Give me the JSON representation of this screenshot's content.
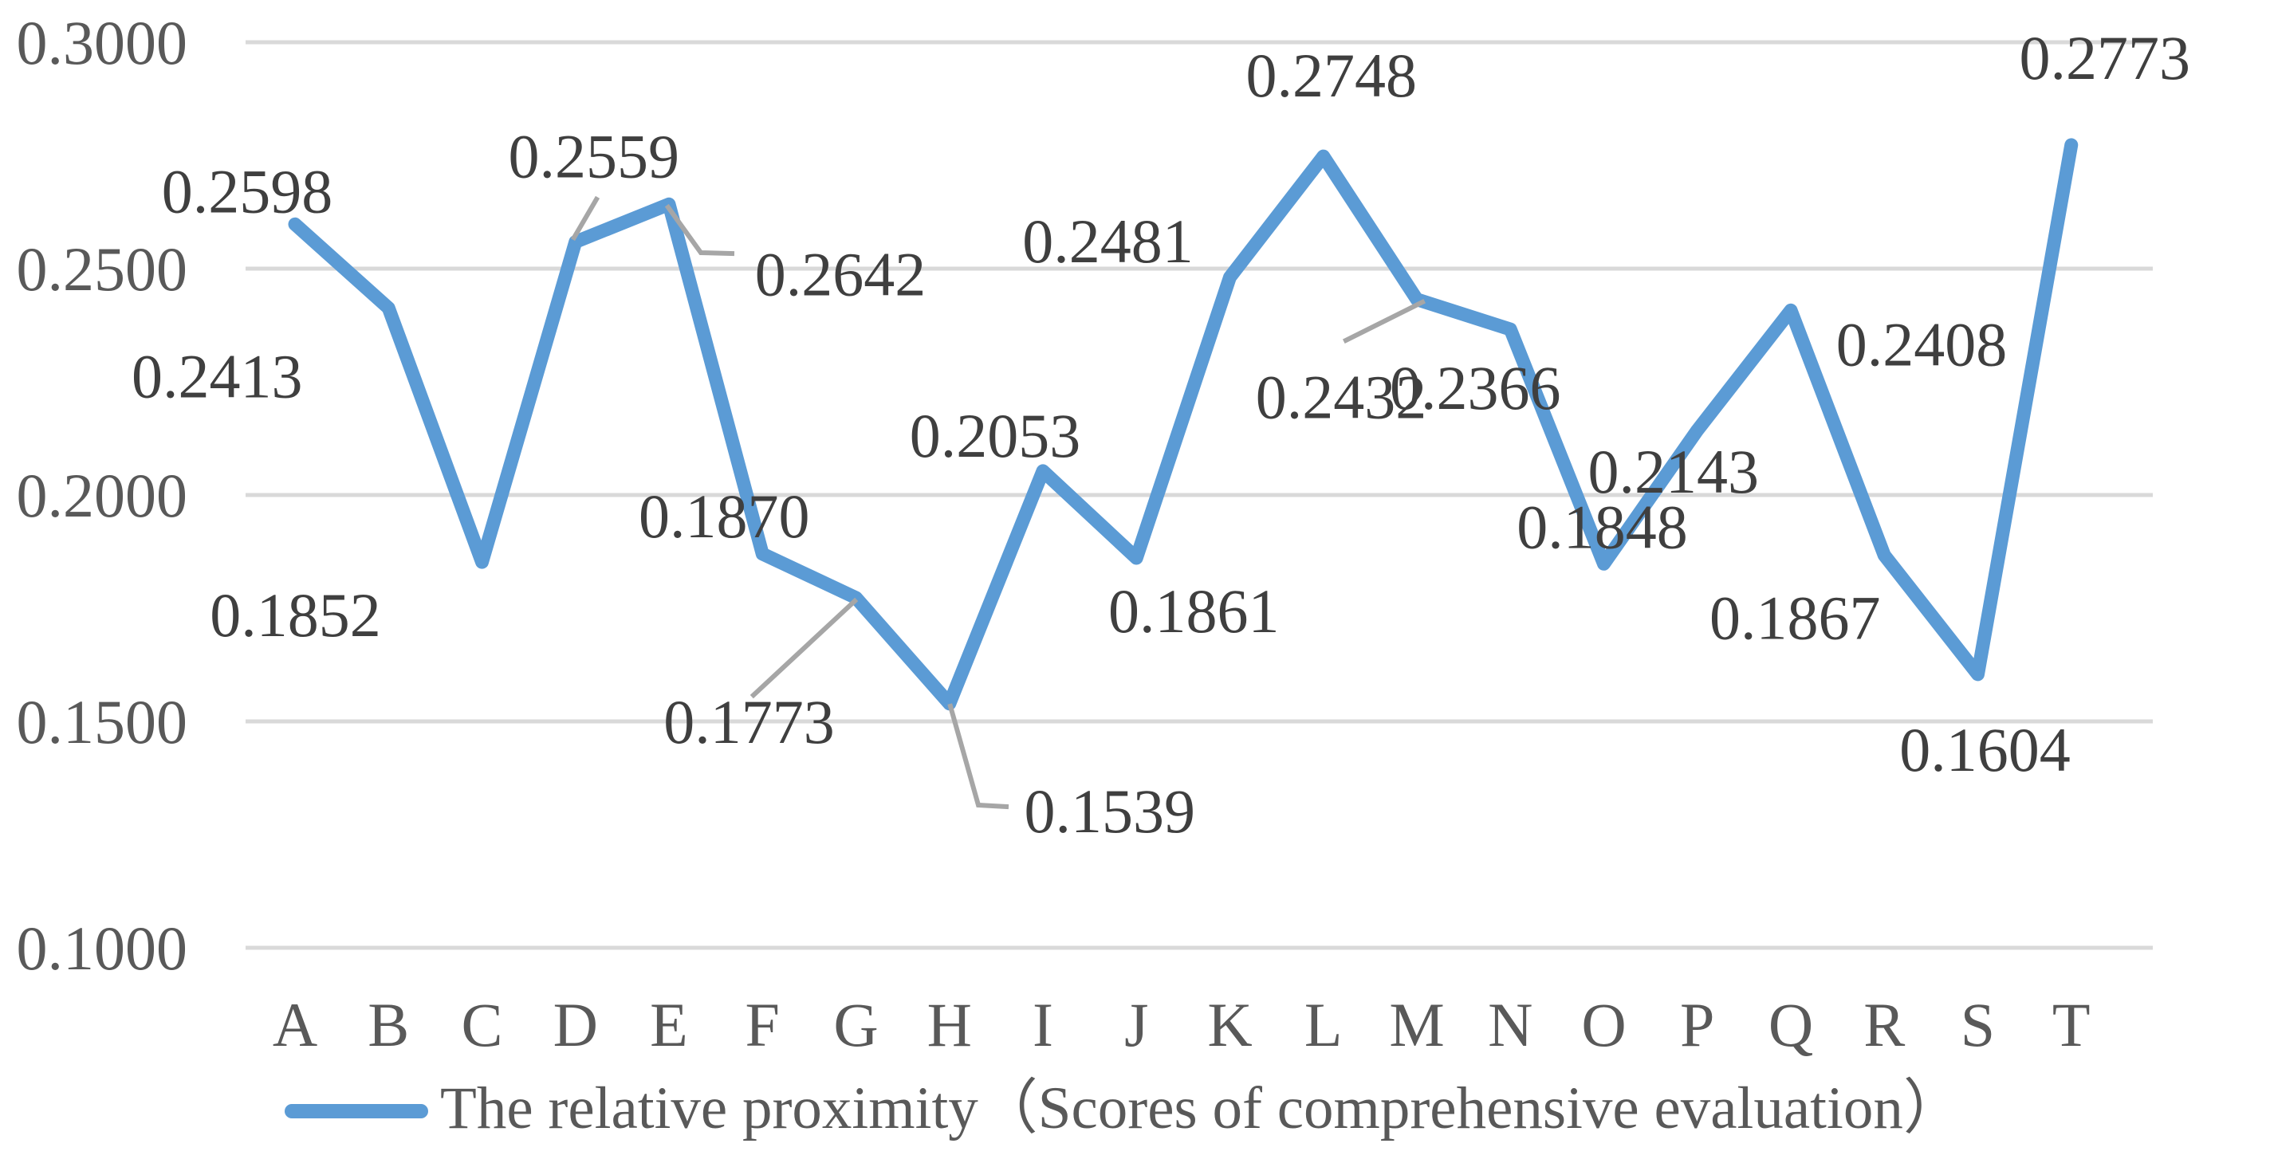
{
  "chart_data": {
    "type": "line",
    "title": "",
    "categories": [
      "A",
      "B",
      "C",
      "D",
      "E",
      "F",
      "G",
      "H",
      "I",
      "J",
      "K",
      "L",
      "M",
      "N",
      "O",
      "P",
      "Q",
      "R",
      "S",
      "T"
    ],
    "series": [
      {
        "name": "The relative proximity（Scores of comprehensive evaluation）",
        "values": [
          0.2598,
          0.2413,
          0.1852,
          0.2559,
          0.2642,
          0.187,
          0.1773,
          0.1539,
          0.2053,
          0.1861,
          0.2481,
          0.2748,
          0.2432,
          0.2366,
          0.1848,
          0.2143,
          0.2408,
          0.1867,
          0.1604,
          0.2773
        ]
      }
    ],
    "data_labels": [
      "0.2598",
      "0.2413",
      "0.1852",
      "0.2559",
      "0.2642",
      "0.1870",
      "0.1773",
      "0.1539",
      "0.2053",
      "0.1861",
      "0.2481",
      "0.2748",
      "0.2432",
      "0.2366",
      "0.1848",
      "0.2143",
      "0.2408",
      "0.1867",
      "0.1604",
      "0.2773"
    ],
    "xlabel": "",
    "ylabel": "",
    "ylim": [
      0.1,
      0.3
    ],
    "ytick_labels": [
      "0.3000",
      "0.2500",
      "0.2000",
      "0.1500",
      "0.1000"
    ],
    "yticks": [
      0.3,
      0.25,
      0.2,
      0.15,
      0.1
    ],
    "grid": true,
    "legend_position": "bottom"
  },
  "legend": {
    "label": "The relative proximity（Scores of comprehensive evaluation）"
  },
  "colors": {
    "line": "#5B9BD5",
    "grid": "#D9D9D9",
    "axis_text": "#595959",
    "label_text": "#3F3F3F",
    "leader": "#A6A6A6",
    "background": "#FFFFFF"
  }
}
